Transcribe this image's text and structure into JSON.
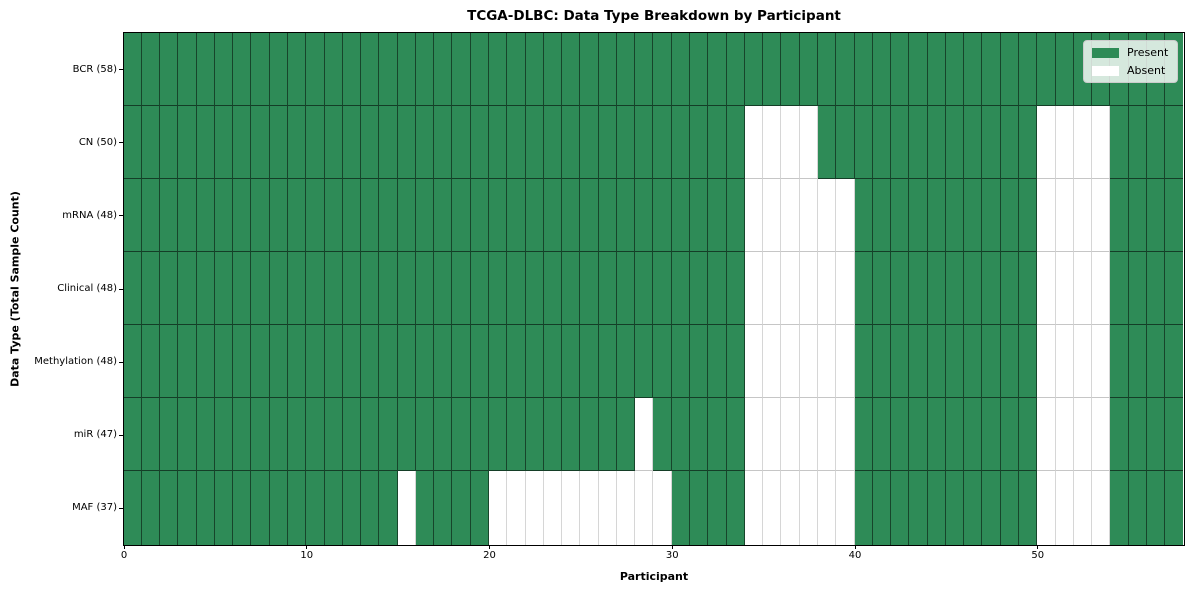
{
  "chart_data": {
    "type": "heatmap",
    "title": "TCGA-DLBC: Data Type Breakdown by Participant",
    "xlabel": "Participant",
    "ylabel": "Data Type (Total Sample Count)",
    "participants": 58,
    "x_range": [
      0,
      58
    ],
    "xticks": [
      0,
      10,
      20,
      30,
      40,
      50
    ],
    "grid": "cell-borders-on",
    "legend_position": "upper-right-inside",
    "legend": [
      {
        "label": "Present",
        "color": "#2E8B57"
      },
      {
        "label": "Absent",
        "color": "#FFFFFF"
      }
    ],
    "colors": {
      "present": "#2E8B57",
      "absent": "#FFFFFF"
    },
    "rows": [
      {
        "name": "BCR",
        "label": "BCR (58)",
        "present_count": 58,
        "absent_participants": []
      },
      {
        "name": "CN",
        "label": "CN (50)",
        "present_count": 50,
        "absent_participants": [
          34,
          35,
          36,
          37,
          50,
          51,
          52,
          53
        ]
      },
      {
        "name": "mRNA",
        "label": "mRNA (48)",
        "present_count": 48,
        "absent_participants": [
          34,
          35,
          36,
          37,
          38,
          39,
          50,
          51,
          52,
          53
        ]
      },
      {
        "name": "Clinical",
        "label": "Clinical (48)",
        "present_count": 48,
        "absent_participants": [
          34,
          35,
          36,
          37,
          38,
          39,
          50,
          51,
          52,
          53
        ]
      },
      {
        "name": "Methylation",
        "label": "Methylation (48)",
        "present_count": 48,
        "absent_participants": [
          34,
          35,
          36,
          37,
          38,
          39,
          50,
          51,
          52,
          53
        ]
      },
      {
        "name": "miR",
        "label": "miR (47)",
        "present_count": 47,
        "absent_participants": [
          28,
          34,
          35,
          36,
          37,
          38,
          39,
          50,
          51,
          52,
          53
        ]
      },
      {
        "name": "MAF",
        "label": "MAF (37)",
        "present_count": 37,
        "absent_participants": [
          15,
          20,
          21,
          22,
          23,
          24,
          25,
          26,
          27,
          28,
          29,
          34,
          35,
          36,
          37,
          38,
          39,
          50,
          51,
          52,
          53
        ]
      }
    ]
  }
}
